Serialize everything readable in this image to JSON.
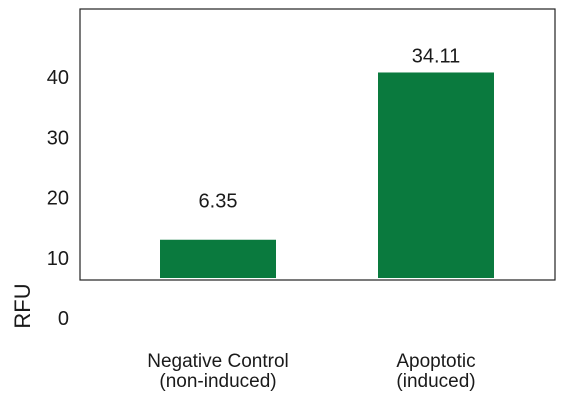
{
  "chart_data": {
    "type": "bar",
    "title": "",
    "xlabel": "",
    "ylabel": "RFU",
    "categories": [
      [
        "Negative Control",
        "(non-induced)"
      ],
      [
        "Apoptotic",
        "(induced)"
      ]
    ],
    "values": [
      6.35,
      34.11
    ],
    "value_labels": [
      "6.35",
      "34.11"
    ],
    "ylim": [
      0,
      47
    ],
    "yticks": [
      0,
      10,
      20,
      30,
      40
    ],
    "bar_color": "#0a7a3e",
    "grid": false,
    "legend": "none"
  }
}
